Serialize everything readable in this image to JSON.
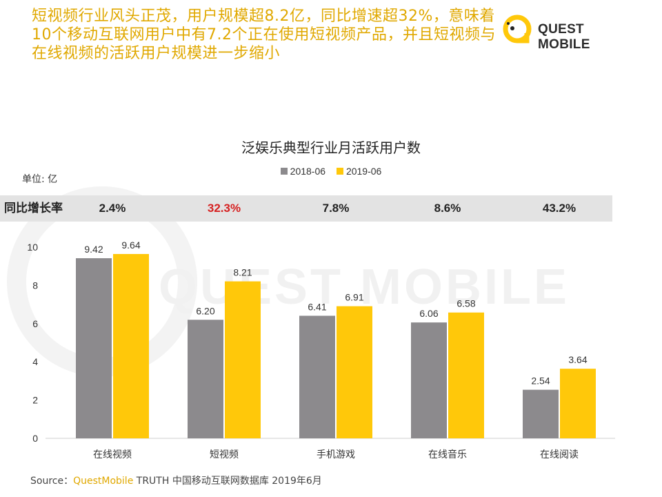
{
  "headline": "短视频行业风头正茂，用户规模超8.2亿，同比增速超32%，意味着10个移动互联网用户中有7.2个正在使用短视频产品，并且短视频与在线视频的活跃用户规模进一步缩小",
  "logo": {
    "text": "QUEST MOBILE"
  },
  "watermark": {
    "text": "QUEST MOBILE"
  },
  "unit_label": "单位: 亿",
  "growth_row": {
    "label": "同比增长率",
    "values": [
      "2.4%",
      "32.3%",
      "7.8%",
      "8.6%",
      "43.2%"
    ],
    "highlight_index": 1,
    "highlight_color": "#d62020"
  },
  "source": {
    "prefix": "Source：",
    "brand": "QuestMobile",
    "rest": " TRUTH 中国移动互联网数据库 2019年6月"
  },
  "colors": {
    "series_2018": "#8c8a8d",
    "series_2019": "#ffc80a",
    "accent": "#e0a800"
  },
  "chart_data": {
    "type": "bar",
    "title": "泛娱乐典型行业月活跃用户数",
    "categories": [
      "在线视频",
      "短视频",
      "手机游戏",
      "在线音乐",
      "在线阅读"
    ],
    "series": [
      {
        "name": "2018-06",
        "values": [
          9.42,
          6.2,
          6.41,
          6.06,
          2.54
        ],
        "labels": [
          "9.42",
          "6.20",
          "6.41",
          "6.06",
          "2.54"
        ]
      },
      {
        "name": "2019-06",
        "values": [
          9.64,
          8.21,
          6.91,
          6.58,
          3.64
        ],
        "labels": [
          "9.64",
          "8.21",
          "6.91",
          "6.58",
          "3.64"
        ]
      }
    ],
    "ylim": [
      0,
      10
    ],
    "yticks": [
      "0",
      "2",
      "4",
      "6",
      "8",
      "10"
    ],
    "legend_position": "top-center",
    "grid": false
  }
}
